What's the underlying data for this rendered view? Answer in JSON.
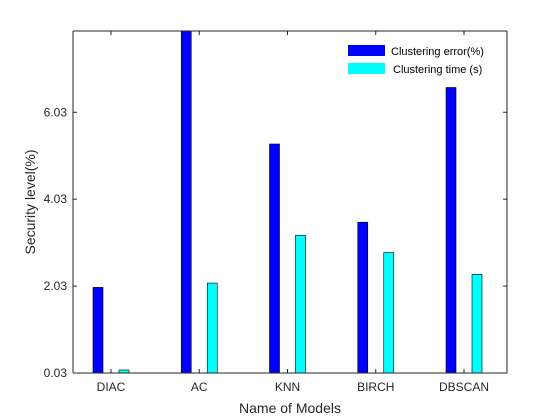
{
  "chart_data": {
    "type": "bar",
    "title": "",
    "xlabel": "Name of Models",
    "ylabel": "Security level(%)",
    "categories": [
      "DIAC",
      "AC",
      "KNN",
      "BIRCH",
      "DBSCAN"
    ],
    "series": [
      {
        "name": "Clustering error(%)",
        "color": "#0000ff",
        "values": [
          2.0,
          7.9,
          5.3,
          3.5,
          6.6
        ]
      },
      {
        "name": "Clustering time (s)",
        "color": "#00ffff",
        "values": [
          0.1,
          2.1,
          3.2,
          2.8,
          2.3
        ]
      }
    ],
    "yticks": [
      "0.03",
      "2.03",
      "4.03",
      "6.03"
    ],
    "ylim": [
      0.03,
      7.9
    ],
    "grid": false,
    "legend_position": "top-right"
  }
}
